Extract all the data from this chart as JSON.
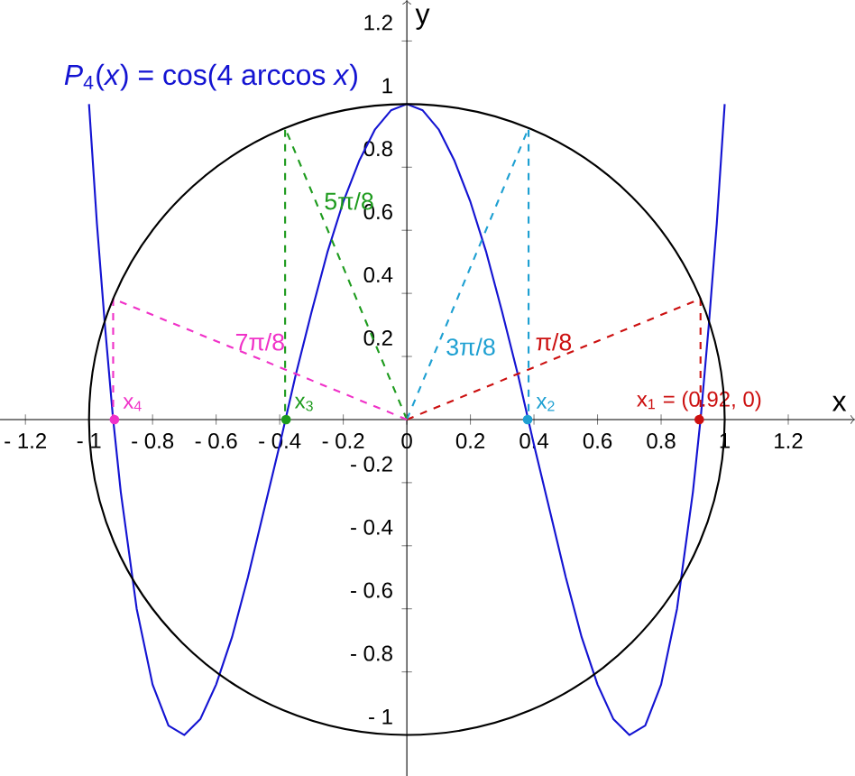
{
  "chart_data": {
    "type": "line",
    "xlabel": "x",
    "ylabel": "y",
    "xlim": [
      -1.28,
      1.41
    ],
    "ylim": [
      -1.13,
      1.33
    ],
    "xticks": [
      {
        "value": -1.2,
        "label": "- 1.2"
      },
      {
        "value": -1,
        "label": "- 1"
      },
      {
        "value": -0.8,
        "label": "- 0.8"
      },
      {
        "value": -0.6,
        "label": "- 0.6"
      },
      {
        "value": -0.4,
        "label": "- 0.4"
      },
      {
        "value": -0.2,
        "label": "- 0.2"
      },
      0,
      0.2,
      0.4,
      0.6,
      0.8,
      1,
      1.2
    ],
    "yticks": [
      {
        "value": -1,
        "label": "- 1"
      },
      {
        "value": -0.8,
        "label": "- 0.8"
      },
      {
        "value": -0.6,
        "label": "- 0.6"
      },
      {
        "value": -0.4,
        "label": "- 0.4"
      },
      {
        "value": -0.2,
        "label": "- 0.2"
      },
      0.2,
      0.4,
      0.6,
      0.8,
      1,
      1.2
    ],
    "series": [
      {
        "name": "*P*$_{4}$(*x*) = cos(4 arccos *x*)",
        "color": "#1414d2",
        "line_style": "solid",
        "x": [
          -1,
          -0.975,
          -0.95,
          -0.925,
          -0.9,
          -0.85,
          -0.8,
          -0.75,
          -0.7,
          -0.65,
          -0.6,
          -0.55,
          -0.5,
          -0.45,
          -0.4,
          -0.35,
          -0.3,
          -0.25,
          -0.2,
          -0.15,
          -0.1,
          -0.05,
          0,
          0.05,
          0.1,
          0.15,
          0.2,
          0.25,
          0.3,
          0.35,
          0.4,
          0.45,
          0.5,
          0.55,
          0.6,
          0.65,
          0.7,
          0.75,
          0.8,
          0.85,
          0.9,
          0.925,
          0.95,
          0.975,
          1
        ],
        "values": [
          1,
          0.62,
          0.3,
          0.01,
          -0.23,
          -0.6,
          -0.84,
          -0.97,
          -1,
          -0.95,
          -0.84,
          -0.69,
          -0.5,
          -0.29,
          -0.08,
          0.14,
          0.34,
          0.53,
          0.69,
          0.82,
          0.92,
          0.98,
          1,
          0.98,
          0.92,
          0.82,
          0.69,
          0.53,
          0.34,
          0.14,
          -0.08,
          -0.29,
          -0.5,
          -0.69,
          -0.84,
          -0.95,
          -1,
          -0.97,
          -0.84,
          -0.6,
          -0.23,
          0.01,
          0.3,
          0.62,
          1
        ]
      },
      {
        "type": "line",
        "name": "π/8",
        "color": "#cc1010",
        "line_style": "dashed",
        "x": [
          0,
          0.924,
          0.924
        ],
        "values": [
          0,
          0.383,
          0
        ]
      },
      {
        "type": "line",
        "name": "3π/8",
        "color": "#1ea0d2",
        "line_style": "dashed",
        "x": [
          0,
          0.383,
          0.383
        ],
        "values": [
          0,
          0.924,
          0
        ]
      },
      {
        "type": "line",
        "name": "5π/8",
        "color": "#1e9b1e",
        "line_style": "dashed",
        "x": [
          0,
          -0.383,
          -0.383
        ],
        "values": [
          0,
          0.924,
          0
        ]
      },
      {
        "type": "line",
        "name": "7π/8",
        "color": "#f032c8",
        "line_style": "dashed",
        "x": [
          0,
          -0.924,
          -0.924
        ],
        "values": [
          0,
          0.383,
          0
        ]
      },
      {
        "type": "scatter",
        "name": "x$_{1}$ = (0.92, 0)",
        "color": "#cc1010",
        "marker": "circle",
        "x": [
          0.92
        ],
        "values": [
          0
        ]
      },
      {
        "type": "scatter",
        "name": "x$_{2}$",
        "color": "#1ea0d2",
        "marker": "circle",
        "x": [
          0.38
        ],
        "values": [
          0
        ]
      },
      {
        "type": "scatter",
        "name": "x$_{3}$",
        "color": "#1e9b1e",
        "marker": "circle",
        "x": [
          -0.38
        ],
        "values": [
          0
        ]
      },
      {
        "type": "scatter",
        "name": "x$_{4}$",
        "color": "#f032c8",
        "marker": "circle",
        "x": [
          -0.92
        ],
        "values": [
          0
        ]
      }
    ]
  }
}
